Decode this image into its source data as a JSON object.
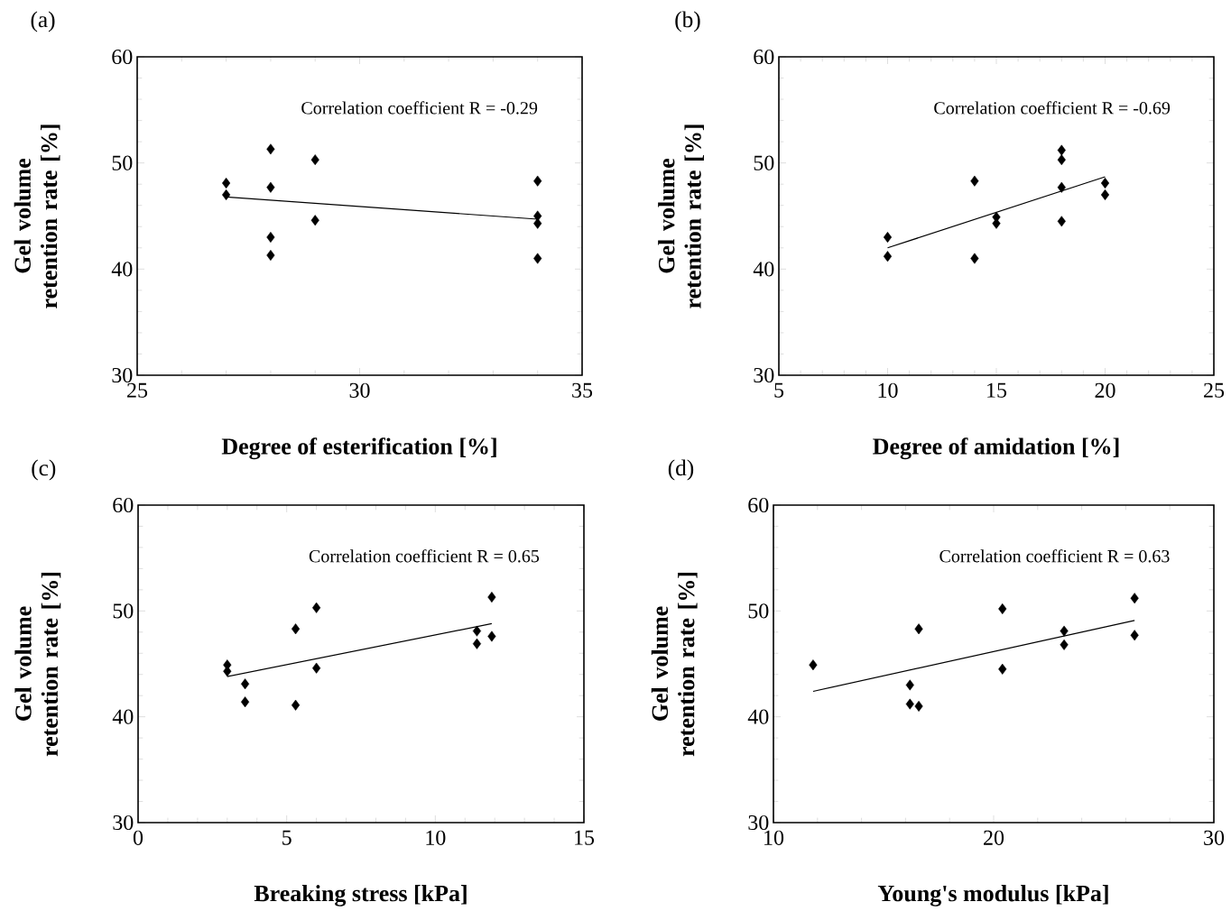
{
  "chart_data": [
    {
      "type": "scatter",
      "title": "(a)",
      "xlabel": "Degree of esterification [%]",
      "ylabel": "Gel volume retention rate [%]",
      "xlim": [
        25,
        35
      ],
      "xticks": [
        25,
        30,
        35
      ],
      "ylim": [
        30,
        60
      ],
      "yticks": [
        30,
        40,
        50,
        60
      ],
      "annotations": [
        "Correlation coefficient   R = -0.29"
      ],
      "series": [
        {
          "color": "#000000",
          "marker": "diamond",
          "x": [
            27,
            27,
            28,
            28,
            28,
            28,
            29,
            29,
            34,
            34,
            34,
            34
          ],
          "values": [
            48.1,
            47.0,
            51.3,
            47.7,
            43.0,
            41.3,
            50.3,
            44.6,
            48.3,
            45.0,
            44.3,
            41.0
          ]
        },
        {
          "type": "line",
          "color": "#000000",
          "marker": "none",
          "line_style": "solid",
          "x": [
            27,
            34
          ],
          "values": [
            46.8,
            44.7
          ]
        }
      ]
    },
    {
      "type": "scatter",
      "title": "(b)",
      "xlabel": "Degree of amidation [%]",
      "ylabel": "Gel volume retention rate [%]",
      "xlim": [
        5,
        25
      ],
      "xticks": [
        5,
        10,
        15,
        20,
        25
      ],
      "ylim": [
        30,
        60
      ],
      "yticks": [
        30,
        40,
        50,
        60
      ],
      "annotations": [
        "Correlation coefficient   R = -0.69"
      ],
      "series": [
        {
          "color": "#000000",
          "marker": "diamond",
          "x": [
            10,
            10,
            14,
            14,
            15,
            15,
            18,
            18,
            18,
            18,
            20,
            20
          ],
          "values": [
            43.0,
            41.2,
            48.3,
            41.0,
            44.9,
            44.3,
            51.2,
            50.3,
            47.7,
            44.5,
            48.1,
            47.0
          ]
        },
        {
          "type": "line",
          "color": "#000000",
          "marker": "none",
          "line_style": "solid",
          "x": [
            10,
            20
          ],
          "values": [
            42.0,
            48.7
          ]
        }
      ]
    },
    {
      "type": "scatter",
      "title": "(c)",
      "xlabel": "Breaking stress [kPa]",
      "ylabel": "Gel volume retention rate [%]",
      "xlim": [
        0,
        15
      ],
      "xticks": [
        0,
        5,
        10,
        15
      ],
      "ylim": [
        30,
        60
      ],
      "yticks": [
        30,
        40,
        50,
        60
      ],
      "annotations": [
        "Correlation coefficient  R = 0.65"
      ],
      "series": [
        {
          "color": "#000000",
          "marker": "diamond",
          "x": [
            3.0,
            3.0,
            3.6,
            3.6,
            5.3,
            5.3,
            6.0,
            6.0,
            11.4,
            11.4,
            11.9,
            11.9
          ],
          "values": [
            44.9,
            44.3,
            43.1,
            41.4,
            48.3,
            41.1,
            50.3,
            44.6,
            48.1,
            46.9,
            51.3,
            47.6
          ]
        },
        {
          "type": "line",
          "color": "#000000",
          "marker": "none",
          "line_style": "solid",
          "x": [
            3.0,
            11.9
          ],
          "values": [
            43.8,
            48.8
          ]
        }
      ]
    },
    {
      "type": "scatter",
      "title": "(d)",
      "xlabel": "Young's modulus [kPa]",
      "ylabel": "Gel volume retention rate [%]",
      "xlim": [
        10,
        30
      ],
      "xticks": [
        10,
        20,
        30
      ],
      "ylim": [
        30,
        60
      ],
      "yticks": [
        30,
        40,
        50,
        60
      ],
      "annotations": [
        "Correlation coefficient  R = 0.63"
      ],
      "series": [
        {
          "color": "#000000",
          "marker": "diamond",
          "x": [
            11.8,
            16.2,
            16.2,
            16.6,
            16.6,
            20.4,
            20.4,
            23.2,
            23.2,
            26.4,
            26.4
          ],
          "values": [
            44.9,
            43.0,
            41.2,
            41.0,
            48.3,
            50.2,
            44.5,
            48.1,
            46.8,
            51.2,
            47.7
          ]
        },
        {
          "type": "line",
          "color": "#000000",
          "marker": "none",
          "line_style": "solid",
          "x": [
            11.8,
            26.4
          ],
          "values": [
            42.4,
            49.1
          ]
        }
      ]
    }
  ]
}
